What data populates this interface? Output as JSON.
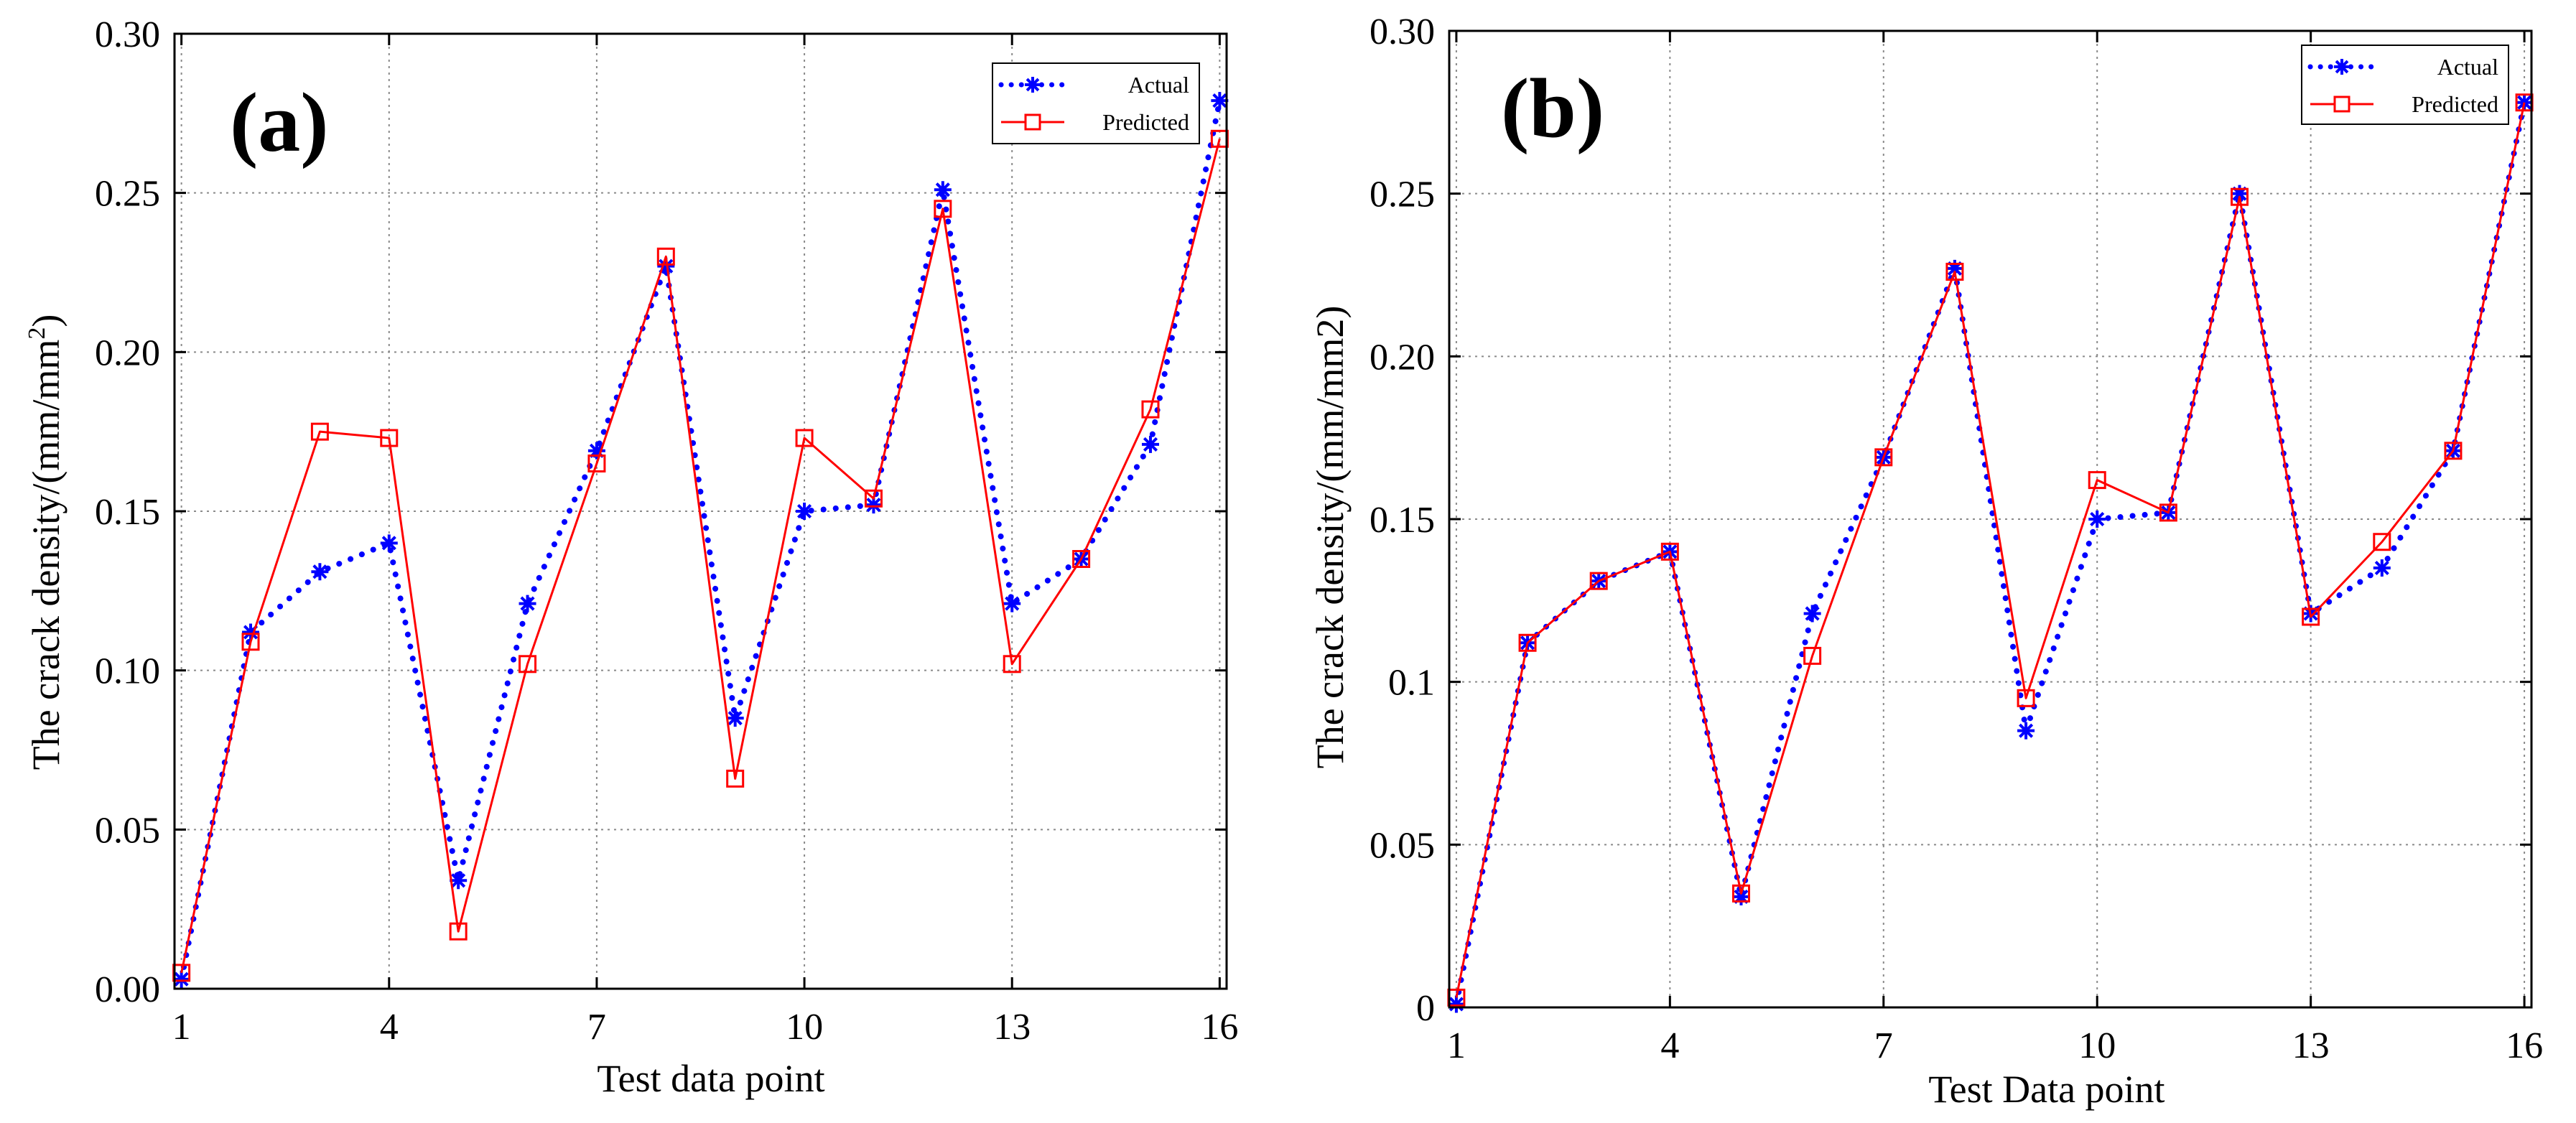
{
  "chart_data": [
    {
      "type": "line",
      "panel_label": "(a)",
      "title": "",
      "xlabel": "Test data point",
      "ylabel": "The crack density/(mm/mm",
      "ylabel_sup": "2",
      "ylabel_close": ")",
      "xlim": [
        0.9,
        16.1
      ],
      "ylim": [
        0,
        0.3
      ],
      "xticks": [
        1,
        4,
        7,
        10,
        13,
        16
      ],
      "xtick_labels": [
        "1",
        "4",
        "7",
        "10",
        "13",
        "16"
      ],
      "yticks": [
        0,
        0.05,
        0.1,
        0.15,
        0.2,
        0.25,
        0.3
      ],
      "ytick_labels": [
        "0.00",
        "0.05",
        "0.10",
        "0.15",
        "0.20",
        "0.25",
        "0.30"
      ],
      "grid": true,
      "legend_position": "top-right",
      "x": [
        1,
        2,
        3,
        4,
        5,
        6,
        7,
        8,
        9,
        10,
        11,
        12,
        13,
        14,
        15,
        16
      ],
      "series": [
        {
          "name": "Actual",
          "color": "#0000ff",
          "marker": "asterisk",
          "line_style": "dotted",
          "values": [
            0.003,
            0.112,
            0.131,
            0.14,
            0.034,
            0.121,
            0.169,
            0.227,
            0.085,
            0.15,
            0.152,
            0.251,
            0.121,
            0.135,
            0.171,
            0.279
          ]
        },
        {
          "name": "Predicted",
          "color": "#ff0000",
          "marker": "square",
          "line_style": "solid",
          "values": [
            0.005,
            0.109,
            0.175,
            0.173,
            0.018,
            0.102,
            0.165,
            0.23,
            0.066,
            0.173,
            0.154,
            0.245,
            0.102,
            0.135,
            0.182,
            0.267
          ]
        }
      ]
    },
    {
      "type": "line",
      "panel_label": "(b)",
      "title": "",
      "xlabel": "Test Data point",
      "ylabel": "The crack density/(mm/mm2)",
      "ylabel_sup": "",
      "ylabel_close": "",
      "xlim": [
        0.9,
        16.1
      ],
      "ylim": [
        0,
        0.3
      ],
      "xticks": [
        1,
        4,
        7,
        10,
        13,
        16
      ],
      "xtick_labels": [
        "1",
        "4",
        "7",
        "10",
        "13",
        "16"
      ],
      "yticks": [
        0,
        0.05,
        0.1,
        0.15,
        0.2,
        0.25,
        0.3
      ],
      "ytick_labels": [
        "0",
        "0.05",
        "0.1",
        "0.15",
        "0.20",
        "0.25",
        "0.30"
      ],
      "grid": true,
      "legend_position": "top-right",
      "x": [
        1,
        2,
        3,
        4,
        5,
        6,
        7,
        8,
        9,
        10,
        11,
        12,
        13,
        14,
        15,
        16
      ],
      "series": [
        {
          "name": "Actual",
          "color": "#0000ff",
          "marker": "asterisk",
          "line_style": "dotted",
          "values": [
            0.001,
            0.112,
            0.131,
            0.14,
            0.034,
            0.121,
            0.169,
            0.227,
            0.085,
            0.15,
            0.152,
            0.25,
            0.121,
            0.135,
            0.171,
            0.278
          ]
        },
        {
          "name": "Predicted",
          "color": "#ff0000",
          "marker": "square",
          "line_style": "solid",
          "values": [
            0.003,
            0.112,
            0.131,
            0.14,
            0.035,
            0.108,
            0.169,
            0.226,
            0.095,
            0.162,
            0.152,
            0.249,
            0.12,
            0.143,
            0.171,
            0.278
          ]
        }
      ]
    }
  ]
}
